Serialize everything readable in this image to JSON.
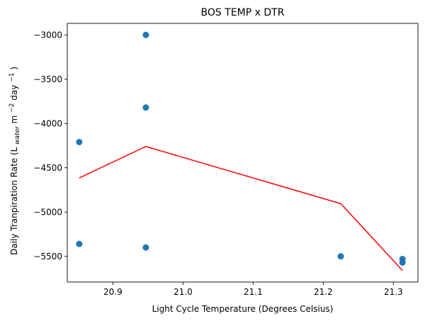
{
  "chart_data": {
    "type": "scatter",
    "title": "BOS TEMP x DTR",
    "xlabel": "Light Cycle Temperature (Degrees Celsius)",
    "ylabel": {
      "prefix": "Daily Tranpiration Rate (L",
      "sub": "water",
      "mid": " m",
      "sup1": "−2",
      "mid2": " day",
      "sup2": "−1",
      "suffix": ")"
    },
    "xlim": [
      20.835,
      21.335
    ],
    "ylim": [
      -5790,
      -2870
    ],
    "xticks": [
      {
        "value": 20.9,
        "label": "20.9"
      },
      {
        "value": 21.0,
        "label": "21.0"
      },
      {
        "value": 21.1,
        "label": "21.1"
      },
      {
        "value": 21.2,
        "label": "21.2"
      },
      {
        "value": 21.3,
        "label": "21.3"
      }
    ],
    "yticks": [
      {
        "value": -3000,
        "label": "−3000"
      },
      {
        "value": -3500,
        "label": "−3500"
      },
      {
        "value": -4000,
        "label": "−4000"
      },
      {
        "value": -4500,
        "label": "−4500"
      },
      {
        "value": -5000,
        "label": "−5000"
      },
      {
        "value": -5500,
        "label": "−5500"
      }
    ],
    "series": [
      {
        "kind": "scatter",
        "color": "#1f77b4",
        "points": [
          {
            "x": 20.852,
            "y": -4210
          },
          {
            "x": 20.852,
            "y": -5360
          },
          {
            "x": 20.947,
            "y": -3000
          },
          {
            "x": 20.947,
            "y": -3820
          },
          {
            "x": 20.947,
            "y": -5400
          },
          {
            "x": 21.225,
            "y": -5500
          },
          {
            "x": 21.313,
            "y": -5530
          },
          {
            "x": 21.313,
            "y": -5570
          }
        ]
      },
      {
        "kind": "line",
        "color": "#ff0000",
        "points": [
          {
            "x": 20.852,
            "y": -4615
          },
          {
            "x": 20.947,
            "y": -4260
          },
          {
            "x": 21.225,
            "y": -4905
          },
          {
            "x": 21.313,
            "y": -5660
          }
        ]
      }
    ]
  }
}
